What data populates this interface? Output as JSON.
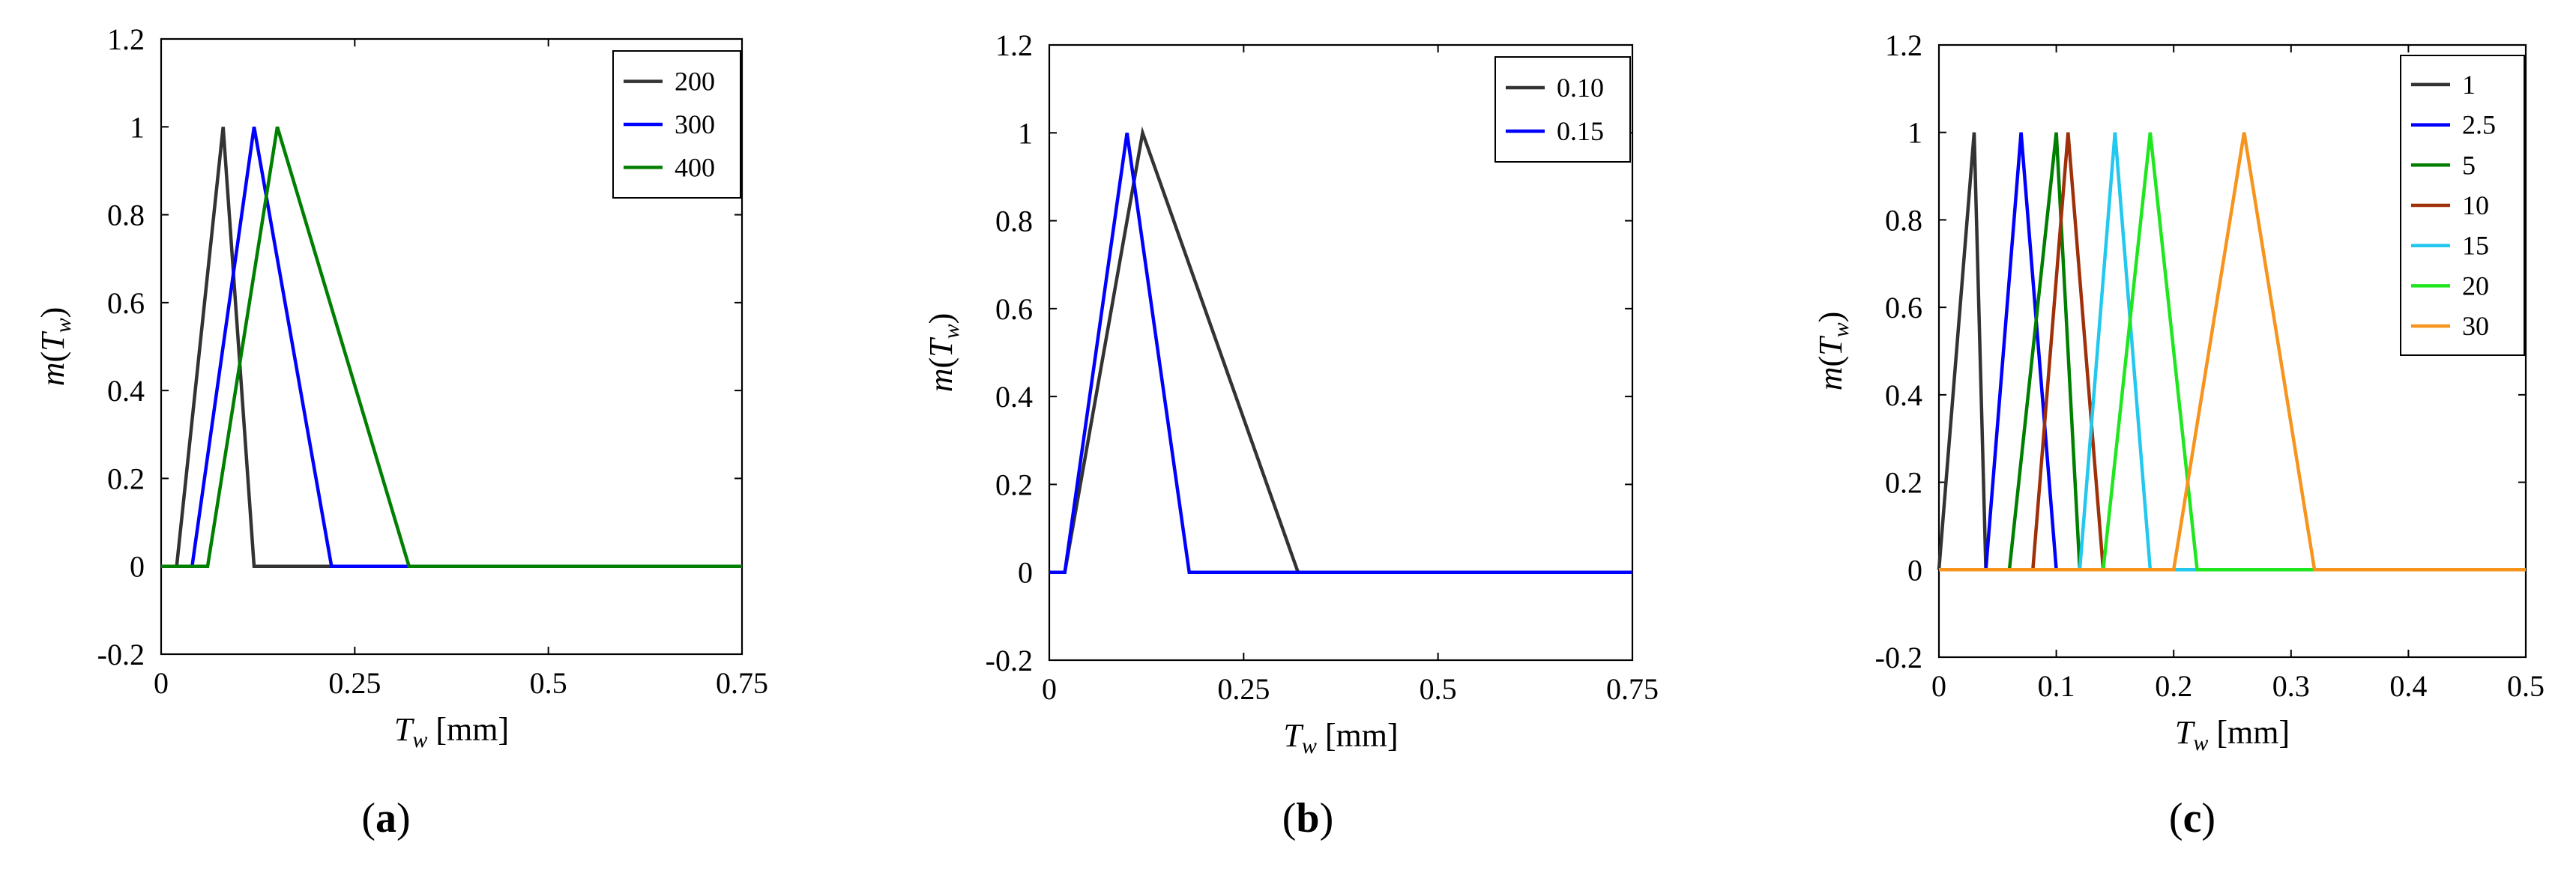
{
  "chart_data": [
    {
      "type": "line",
      "xlabel": "T_w [mm]",
      "ylabel": "m(T_w)",
      "xlim": [
        0,
        0.75
      ],
      "ylim": [
        -0.2,
        1.2
      ],
      "xticks": [
        "0",
        "0.25",
        "0.5",
        "0.75"
      ],
      "yticks": [
        "-0.2",
        "0",
        "0.2",
        "0.4",
        "0.6",
        "0.8",
        "1",
        "1.2"
      ],
      "xtick_values": [
        0,
        0.25,
        0.5,
        0.75
      ],
      "ytick_values": [
        -0.2,
        0,
        0.2,
        0.4,
        0.6,
        0.8,
        1,
        1.2
      ],
      "legend_position": "top-right",
      "caption": "(a)",
      "series": [
        {
          "name": "200",
          "color": "#333333",
          "x": [
            0,
            0.02,
            0.08,
            0.12,
            0.75
          ],
          "y": [
            0,
            0,
            1,
            0,
            0
          ]
        },
        {
          "name": "300",
          "color": "#0000ff",
          "x": [
            0,
            0.04,
            0.12,
            0.22,
            0.75
          ],
          "y": [
            0,
            0,
            1,
            0,
            0
          ]
        },
        {
          "name": "400",
          "color": "#007f00",
          "x": [
            0,
            0.06,
            0.15,
            0.32,
            0.75
          ],
          "y": [
            0,
            0,
            1,
            0,
            0
          ]
        }
      ]
    },
    {
      "type": "line",
      "xlabel": "T_w [mm]",
      "ylabel": "m(T_w)",
      "xlim": [
        0,
        0.75
      ],
      "ylim": [
        -0.2,
        1.2
      ],
      "xticks": [
        "0",
        "0.25",
        "0.5",
        "0.75"
      ],
      "yticks": [
        "-0.2",
        "0",
        "0.2",
        "0.4",
        "0.6",
        "0.8",
        "1",
        "1.2"
      ],
      "xtick_values": [
        0,
        0.25,
        0.5,
        0.75
      ],
      "ytick_values": [
        -0.2,
        0,
        0.2,
        0.4,
        0.6,
        0.8,
        1,
        1.2
      ],
      "legend_position": "top-right",
      "caption": "(b)",
      "series": [
        {
          "name": "0.10",
          "color": "#333333",
          "x": [
            0,
            0.02,
            0.12,
            0.32,
            0.75
          ],
          "y": [
            0,
            0,
            1,
            0,
            0
          ]
        },
        {
          "name": "0.15",
          "color": "#0000ff",
          "x": [
            0,
            0.02,
            0.1,
            0.18,
            0.75
          ],
          "y": [
            0,
            0,
            1,
            0,
            0
          ]
        }
      ]
    },
    {
      "type": "line",
      "xlabel": "T_w [mm]",
      "ylabel": "m(T_w)",
      "xlim": [
        0,
        0.5
      ],
      "ylim": [
        -0.2,
        1.2
      ],
      "xticks": [
        "0",
        "0.1",
        "0.2",
        "0.3",
        "0.4",
        "0.5"
      ],
      "yticks": [
        "-0.2",
        "0",
        "0.2",
        "0.4",
        "0.6",
        "0.8",
        "1",
        "1.2"
      ],
      "xtick_values": [
        0,
        0.1,
        0.2,
        0.3,
        0.4,
        0.5
      ],
      "ytick_values": [
        -0.2,
        0,
        0.2,
        0.4,
        0.6,
        0.8,
        1,
        1.2
      ],
      "legend_position": "top-right",
      "caption": "(c)",
      "series": [
        {
          "name": "1",
          "color": "#333333",
          "x": [
            0,
            0.03,
            0.04,
            0.5
          ],
          "y": [
            0,
            1,
            0,
            0
          ]
        },
        {
          "name": "2.5",
          "color": "#0000ff",
          "x": [
            0,
            0.04,
            0.07,
            0.1,
            0.5
          ],
          "y": [
            0,
            0,
            1,
            0,
            0
          ]
        },
        {
          "name": "5",
          "color": "#007f00",
          "x": [
            0,
            0.06,
            0.1,
            0.12,
            0.5
          ],
          "y": [
            0,
            0,
            1,
            0,
            0
          ]
        },
        {
          "name": "10",
          "color": "#a0300a",
          "x": [
            0,
            0.08,
            0.11,
            0.14,
            0.5
          ],
          "y": [
            0,
            0,
            1,
            0,
            0
          ]
        },
        {
          "name": "15",
          "color": "#22c8ee",
          "x": [
            0,
            0.12,
            0.15,
            0.18,
            0.5
          ],
          "y": [
            0,
            0,
            1,
            0,
            0
          ]
        },
        {
          "name": "20",
          "color": "#1fe61f",
          "x": [
            0,
            0.14,
            0.18,
            0.22,
            0.5
          ],
          "y": [
            0,
            0,
            1,
            0,
            0
          ]
        },
        {
          "name": "30",
          "color": "#f7941d",
          "x": [
            0,
            0.2,
            0.26,
            0.32,
            0.5
          ],
          "y": [
            0,
            0,
            1,
            0,
            0
          ]
        }
      ]
    }
  ]
}
